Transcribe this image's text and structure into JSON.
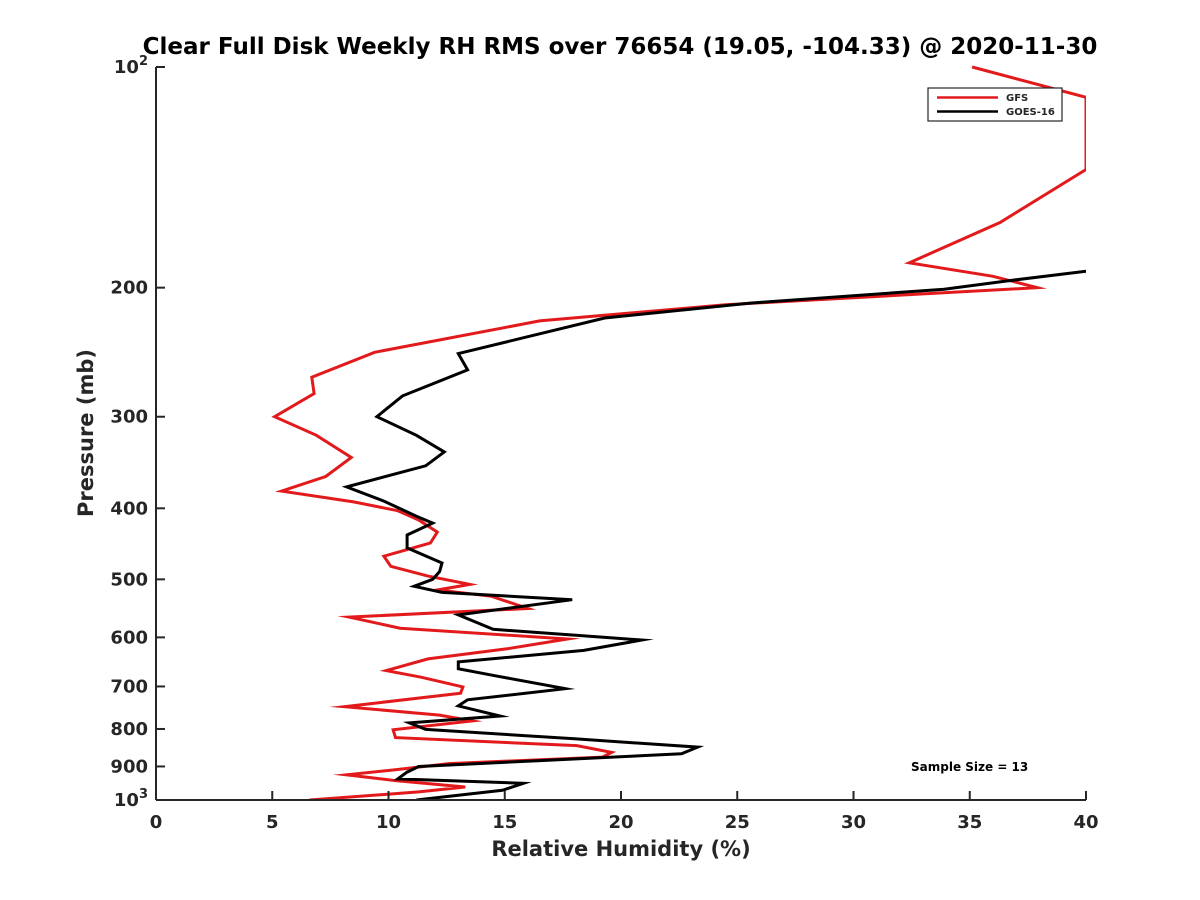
{
  "chart_data": {
    "type": "line",
    "orientation": "profile",
    "title": "Clear Full Disk Weekly RH RMS over 76654 (19.05, -104.33) @ 2020-11-30",
    "xlabel": "Relative Humidity (%)",
    "ylabel": "Pressure (mb)",
    "xlim": [
      0,
      40
    ],
    "ylim": [
      100,
      1000
    ],
    "yscale": "log",
    "y_reversed": true,
    "grid": false,
    "legend_position": "top-right",
    "x_ticks": [
      {
        "value": 0,
        "label": "0"
      },
      {
        "value": 5,
        "label": "5"
      },
      {
        "value": 10,
        "label": "10"
      },
      {
        "value": 15,
        "label": "15"
      },
      {
        "value": 20,
        "label": "20"
      },
      {
        "value": 25,
        "label": "25"
      },
      {
        "value": 30,
        "label": "30"
      },
      {
        "value": 35,
        "label": "35"
      },
      {
        "value": 40,
        "label": "40"
      }
    ],
    "y_ticks": [
      {
        "value": 100,
        "label": "10",
        "sup": "2"
      },
      {
        "value": 200,
        "label": "200"
      },
      {
        "value": 300,
        "label": "300"
      },
      {
        "value": 400,
        "label": "400"
      },
      {
        "value": 500,
        "label": "500"
      },
      {
        "value": 600,
        "label": "600"
      },
      {
        "value": 700,
        "label": "700"
      },
      {
        "value": 800,
        "label": "800"
      },
      {
        "value": 900,
        "label": "900"
      },
      {
        "value": 1000,
        "label": "10",
        "sup": "3"
      }
    ],
    "series": [
      {
        "name": "GFS",
        "color": "#e31a1c",
        "points": [
          [
            35.1,
            100
          ],
          [
            40,
            110
          ],
          [
            40,
            138
          ],
          [
            36.3,
            163
          ],
          [
            32.4,
            185
          ],
          [
            36.0,
            193
          ],
          [
            37.9,
            200
          ],
          [
            24.5,
            211
          ],
          [
            16.5,
            222
          ],
          [
            9.4,
            245
          ],
          [
            6.7,
            265
          ],
          [
            6.8,
            279
          ],
          [
            5.1,
            300
          ],
          [
            6.9,
            318
          ],
          [
            8.4,
            341
          ],
          [
            7.3,
            362
          ],
          [
            5.4,
            379
          ],
          [
            8.5,
            392
          ],
          [
            10.4,
            403
          ],
          [
            11.3,
            415
          ],
          [
            12.1,
            431
          ],
          [
            11.8,
            446
          ],
          [
            9.8,
            465
          ],
          [
            10.1,
            480
          ],
          [
            11.7,
            495
          ],
          [
            13.5,
            508
          ],
          [
            12.1,
            517
          ],
          [
            14.4,
            527
          ],
          [
            16.0,
            548
          ],
          [
            8.3,
            563
          ],
          [
            10.5,
            583
          ],
          [
            17.7,
            603
          ],
          [
            15.1,
            622
          ],
          [
            11.7,
            642
          ],
          [
            9.9,
            666
          ],
          [
            11.4,
            680
          ],
          [
            13.2,
            701
          ],
          [
            13.1,
            715
          ],
          [
            8.1,
            746
          ],
          [
            12.2,
            766
          ],
          [
            13.6,
            780
          ],
          [
            10.2,
            802
          ],
          [
            10.3,
            822
          ],
          [
            18.1,
            843
          ],
          [
            19.6,
            861
          ],
          [
            19.2,
            874
          ],
          [
            12.6,
            892
          ],
          [
            10.2,
            910
          ],
          [
            8.2,
            924
          ],
          [
            10.3,
            941
          ],
          [
            13.3,
            960
          ],
          [
            11.3,
            975
          ],
          [
            6.6,
            1000
          ]
        ]
      },
      {
        "name": "GOES-16",
        "color": "#000000",
        "points": [
          [
            40,
            190
          ],
          [
            36.5,
            196
          ],
          [
            33.9,
            201
          ],
          [
            25.5,
            210
          ],
          [
            19.3,
            220
          ],
          [
            13.0,
            246
          ],
          [
            13.4,
            259
          ],
          [
            10.6,
            281
          ],
          [
            9.5,
            300
          ],
          [
            11.2,
            318
          ],
          [
            12.4,
            335
          ],
          [
            11.6,
            350
          ],
          [
            8.2,
            374
          ],
          [
            9.8,
            391
          ],
          [
            11.2,
            410
          ],
          [
            11.9,
            419
          ],
          [
            10.8,
            435
          ],
          [
            10.8,
            453
          ],
          [
            12.3,
            475
          ],
          [
            12.2,
            488
          ],
          [
            11.9,
            500
          ],
          [
            11.1,
            511
          ],
          [
            12.3,
            521
          ],
          [
            17.9,
            533
          ],
          [
            13.0,
            559
          ],
          [
            14.5,
            585
          ],
          [
            20.9,
            605
          ],
          [
            18.4,
            625
          ],
          [
            13.0,
            648
          ],
          [
            13.0,
            662
          ],
          [
            14.6,
            677
          ],
          [
            17.6,
            705
          ],
          [
            13.4,
            730
          ],
          [
            13.0,
            744
          ],
          [
            14.8,
            768
          ],
          [
            10.9,
            785
          ],
          [
            11.6,
            801
          ],
          [
            18.0,
            825
          ],
          [
            23.3,
            847
          ],
          [
            22.6,
            865
          ],
          [
            11.3,
            900
          ],
          [
            10.8,
            916
          ],
          [
            10.4,
            936
          ],
          [
            15.8,
            949
          ],
          [
            14.9,
            970
          ],
          [
            11.2,
            1000
          ]
        ]
      }
    ],
    "annotation": "Sample Size = 13"
  }
}
